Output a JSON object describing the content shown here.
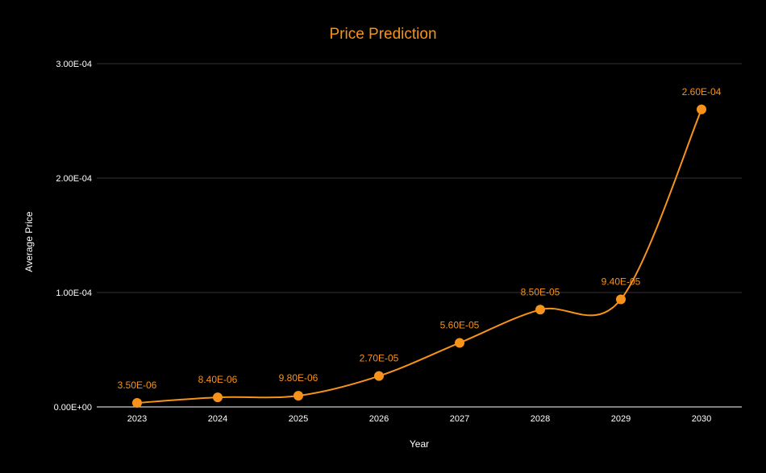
{
  "chart_data": {
    "type": "line",
    "title": "Price Prediction",
    "xlabel": "Year",
    "ylabel": "Average Price",
    "categories": [
      "2023",
      "2024",
      "2025",
      "2026",
      "2027",
      "2028",
      "2029",
      "2030"
    ],
    "series": [
      {
        "values": [
          3.5e-06,
          8.4e-06,
          9.8e-06,
          2.7e-05,
          5.6e-05,
          8.5e-05,
          9.4e-05,
          0.00026
        ],
        "labels": [
          "3.50E-06",
          "8.40E-06",
          "9.80E-06",
          "2.70E-05",
          "5.60E-05",
          "8.50E-05",
          "9.40E-05",
          "2.60E-04"
        ]
      }
    ],
    "yticks": [
      0,
      0.0001,
      0.0002,
      0.0003
    ],
    "ytick_labels": [
      "0.00E+00",
      "1.00E-04",
      "2.00E-04",
      "3.00E-04"
    ],
    "ylim": [
      0,
      0.0003
    ],
    "grid": true,
    "legend": false,
    "colors": {
      "background": "#000000",
      "series": "#F7931A",
      "text": "#ffffff",
      "grid": "#333333"
    }
  }
}
